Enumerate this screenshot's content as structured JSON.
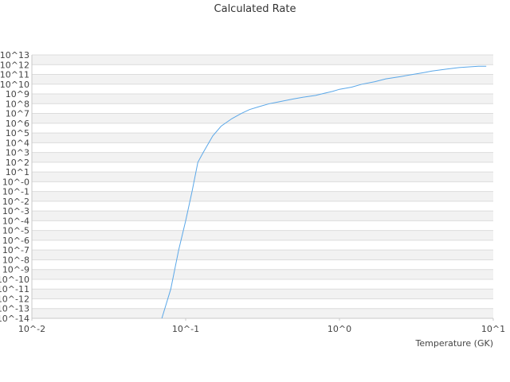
{
  "chart_data": {
    "type": "line",
    "title": "Calculated Rate",
    "xlabel": "Temperature (GK)",
    "ylabel": "",
    "x_scale": "log",
    "y_scale": "log",
    "xlim": [
      0.01,
      10
    ],
    "ylim": [
      1e-14,
      10000000000000.0
    ],
    "grid": "horizontal alternating bands",
    "line_color": "#5aa7e8",
    "x_tick_labels": [
      "10^-2",
      "10^-1",
      "10^0",
      "10^1"
    ],
    "y_tick_labels": [
      "10^-14",
      "10^-13",
      "10^-12",
      "10^-11",
      "10^-10",
      "10^-9",
      "10^-8",
      "10^-7",
      "10^-6",
      "10^-5",
      "10^-4",
      "10^-3",
      "10^-2",
      "10^-1",
      "10^-0",
      "10^1",
      "10^2",
      "10^3",
      "10^4",
      "10^5",
      "10^6",
      "10^7",
      "10^8",
      "10^9",
      "10^10",
      "10^11",
      "10^12",
      "10^13"
    ],
    "series": [
      {
        "x": [
          0.07,
          0.08,
          0.09,
          0.1,
          0.11,
          0.12,
          0.13,
          0.15,
          0.17,
          0.2,
          0.23,
          0.26,
          0.3,
          0.35,
          0.4,
          0.5,
          0.6,
          0.7,
          0.8,
          0.9,
          1.0,
          1.2,
          1.4,
          1.7,
          2.0,
          2.5,
          3.0,
          3.5,
          4.0,
          5.0,
          6.0,
          7.0,
          8.0,
          9.0
        ],
        "y": [
          1e-14,
          1e-11,
          1e-07,
          0.0001,
          0.1,
          100.0,
          1000.0,
          50000.0,
          500000.0,
          3000000.0,
          10000000.0,
          25000000.0,
          50000000.0,
          100000000.0,
          150000000.0,
          300000000.0,
          500000000.0,
          700000000.0,
          1200000000.0,
          1800000000.0,
          3000000000.0,
          5000000000.0,
          10000000000.0,
          18000000000.0,
          35000000000.0,
          60000000000.0,
          100000000000.0,
          150000000000.0,
          220000000000.0,
          350000000000.0,
          500000000000.0,
          600000000000.0,
          700000000000.0,
          700000000000.0
        ]
      }
    ]
  }
}
